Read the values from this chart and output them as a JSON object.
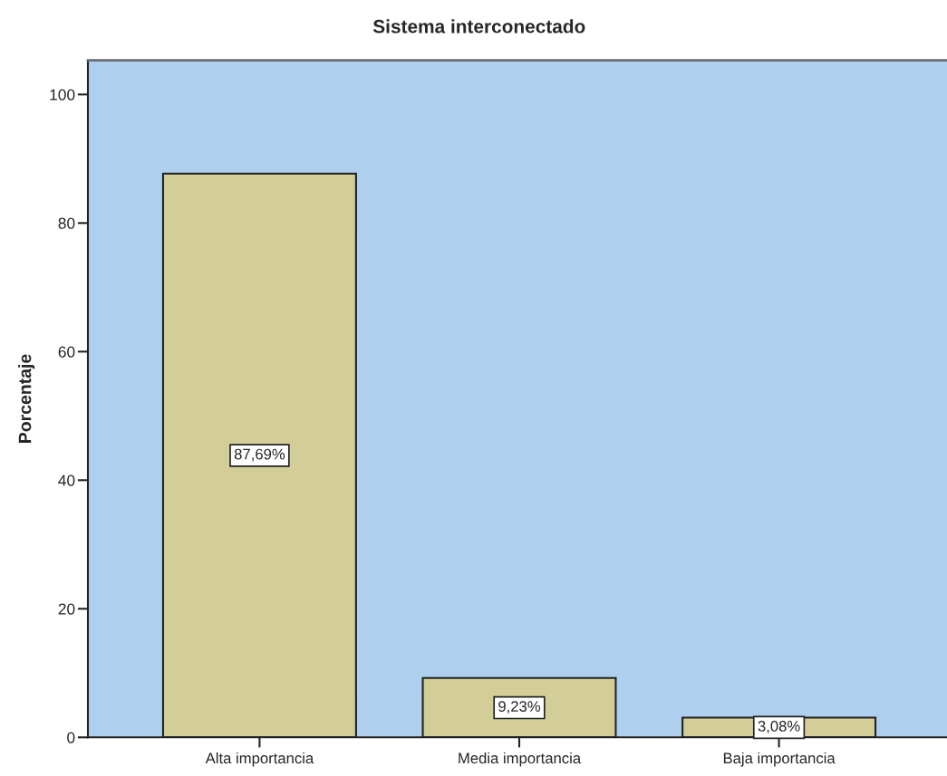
{
  "chart_data": {
    "type": "bar",
    "title": "Sistema interconectado",
    "ylabel": "Porcentaje",
    "categories": [
      "Alta importancia",
      "Media importancia",
      "Baja importancia"
    ],
    "values": [
      87.69,
      9.23,
      3.08
    ],
    "value_labels": [
      "87,69%",
      "9,23%",
      "3,08%"
    ],
    "color": "#d3ce97",
    "ylim": [
      0,
      105.3
    ],
    "yticks": [
      0,
      20,
      40,
      60,
      80,
      100
    ]
  }
}
